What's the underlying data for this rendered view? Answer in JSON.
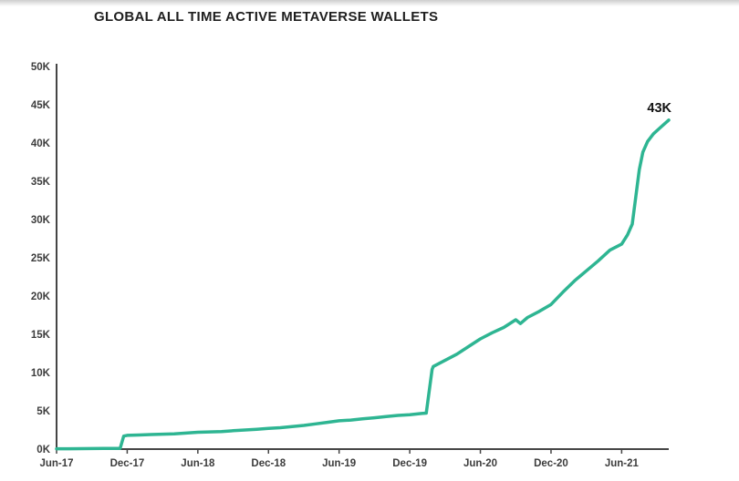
{
  "header": {
    "title": "GLOBAL ALL TIME ACTIVE METAVERSE WALLETS"
  },
  "chart_data": {
    "type": "line",
    "title": "GLOBAL ALL TIME ACTIVE METAVERSE WALLETS",
    "xlabel": "",
    "ylabel": "",
    "x_unit": "months-since-Jun-2017",
    "xlim": [
      0,
      52
    ],
    "ylim": [
      0,
      50
    ],
    "grid": false,
    "legend": false,
    "axis_color": "#454545",
    "line_color": "#2eb592",
    "y_ticks": [
      {
        "value": 0,
        "label": "0K"
      },
      {
        "value": 5,
        "label": "5K"
      },
      {
        "value": 10,
        "label": "10K"
      },
      {
        "value": 15,
        "label": "15K"
      },
      {
        "value": 20,
        "label": "20K"
      },
      {
        "value": 25,
        "label": "25K"
      },
      {
        "value": 30,
        "label": "30K"
      },
      {
        "value": 35,
        "label": "35K"
      },
      {
        "value": 40,
        "label": "40K"
      },
      {
        "value": 45,
        "label": "45K"
      },
      {
        "value": 50,
        "label": "50K"
      }
    ],
    "x_ticks": [
      {
        "pos": 0,
        "label": "Jun-17"
      },
      {
        "pos": 6,
        "label": "Dec-17"
      },
      {
        "pos": 12,
        "label": "Jun-18"
      },
      {
        "pos": 18,
        "label": "Dec-18"
      },
      {
        "pos": 24,
        "label": "Jun-19"
      },
      {
        "pos": 30,
        "label": "Dec-19"
      },
      {
        "pos": 36,
        "label": "Jun-20"
      },
      {
        "pos": 42,
        "label": "Dec-20"
      },
      {
        "pos": 48,
        "label": "Jun-21"
      }
    ],
    "end_annotation": {
      "label": "43K",
      "value": 43
    },
    "series": [
      {
        "name": "global-all-time-active-metaverse-wallets-thousands",
        "color": "#2eb592",
        "points": [
          [
            0,
            0.05
          ],
          [
            1,
            0.05
          ],
          [
            2,
            0.06
          ],
          [
            3,
            0.07
          ],
          [
            4,
            0.08
          ],
          [
            5,
            0.1
          ],
          [
            5.4,
            0.1
          ],
          [
            5.7,
            1.7
          ],
          [
            6,
            1.8
          ],
          [
            7,
            1.85
          ],
          [
            8,
            1.9
          ],
          [
            9,
            1.95
          ],
          [
            10,
            2.0
          ],
          [
            11,
            2.1
          ],
          [
            12,
            2.2
          ],
          [
            13,
            2.25
          ],
          [
            14,
            2.3
          ],
          [
            15,
            2.4
          ],
          [
            16,
            2.5
          ],
          [
            17,
            2.6
          ],
          [
            18,
            2.7
          ],
          [
            19,
            2.8
          ],
          [
            20,
            2.95
          ],
          [
            21,
            3.1
          ],
          [
            22,
            3.3
          ],
          [
            23,
            3.5
          ],
          [
            24,
            3.7
          ],
          [
            25,
            3.8
          ],
          [
            26,
            3.95
          ],
          [
            27,
            4.1
          ],
          [
            28,
            4.25
          ],
          [
            29,
            4.4
          ],
          [
            30,
            4.5
          ],
          [
            31,
            4.65
          ],
          [
            31.4,
            4.7
          ],
          [
            31.9,
            10.4
          ],
          [
            32,
            10.8
          ],
          [
            33,
            11.6
          ],
          [
            34,
            12.4
          ],
          [
            35,
            13.4
          ],
          [
            36,
            14.4
          ],
          [
            37,
            15.2
          ],
          [
            38,
            15.9
          ],
          [
            39,
            16.9
          ],
          [
            39.4,
            16.4
          ],
          [
            40,
            17.2
          ],
          [
            41,
            18.0
          ],
          [
            42,
            18.9
          ],
          [
            43,
            20.5
          ],
          [
            44,
            22.0
          ],
          [
            45,
            23.3
          ],
          [
            46,
            24.6
          ],
          [
            47,
            26.0
          ],
          [
            48,
            26.8
          ],
          [
            48.5,
            28.0
          ],
          [
            48.9,
            29.4
          ],
          [
            49.2,
            33.0
          ],
          [
            49.5,
            36.5
          ],
          [
            49.8,
            38.8
          ],
          [
            50.2,
            40.2
          ],
          [
            50.7,
            41.2
          ],
          [
            51.2,
            41.9
          ],
          [
            52,
            43.0
          ]
        ]
      }
    ]
  }
}
